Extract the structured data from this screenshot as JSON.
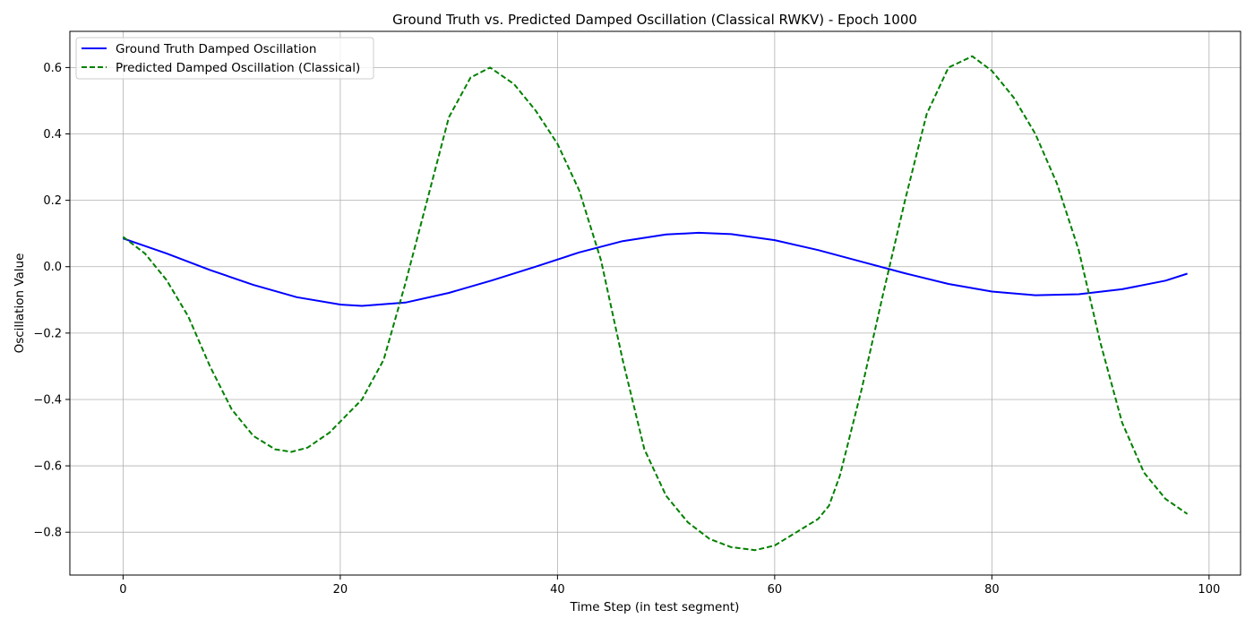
{
  "chart_data": {
    "type": "line",
    "title": "Ground Truth vs. Predicted Damped Oscillation (Classical RWKV) - Epoch 1000",
    "xlabel": "Time Step (in test segment)",
    "ylabel": "Oscillation Value",
    "xlim": [
      -4.9,
      102.9
    ],
    "ylim": [
      -0.929,
      0.709
    ],
    "xticks": [
      0,
      20,
      40,
      60,
      80,
      100
    ],
    "yticks": [
      -0.8,
      -0.6,
      -0.4,
      -0.2,
      0.0,
      0.2,
      0.4,
      0.6
    ],
    "xtick_labels": [
      "0",
      "20",
      "40",
      "60",
      "80",
      "100"
    ],
    "ytick_labels": [
      "−0.8",
      "−0.6",
      "−0.4",
      "−0.2",
      "0.0",
      "0.2",
      "0.4",
      "0.6"
    ],
    "grid": true,
    "legend_position": "top-left",
    "series": [
      {
        "name": "Ground Truth Damped Oscillation",
        "color": "#0000ff",
        "style": "solid",
        "x": [
          0,
          4,
          8,
          12,
          16,
          20,
          22,
          26,
          30,
          34,
          38,
          42,
          46,
          50,
          53,
          56,
          60,
          64,
          68,
          72,
          76,
          80,
          84,
          88,
          92,
          96,
          98
        ],
        "y": [
          0.085,
          0.04,
          -0.01,
          -0.055,
          -0.092,
          -0.114,
          -0.118,
          -0.108,
          -0.079,
          -0.041,
          0.0,
          0.043,
          0.077,
          0.097,
          0.102,
          0.098,
          0.08,
          0.05,
          0.015,
          -0.02,
          -0.052,
          -0.075,
          -0.086,
          -0.083,
          -0.068,
          -0.042,
          -0.021
        ]
      },
      {
        "name": "Predicted Damped Oscillation (Classical)",
        "color": "#008000",
        "style": "dashed",
        "x": [
          0,
          2,
          4,
          6,
          8,
          10,
          12,
          14,
          15.5,
          17,
          19,
          22,
          24,
          26,
          28,
          30,
          32,
          33.8,
          36,
          38,
          40,
          42,
          44,
          46,
          48,
          50,
          52,
          54,
          56,
          58.2,
          60,
          62,
          64,
          65,
          66,
          68,
          70,
          72,
          74,
          76,
          78.2,
          80,
          82,
          84,
          86,
          88,
          90,
          92,
          94,
          96,
          98
        ],
        "y": [
          0.09,
          0.04,
          -0.04,
          -0.15,
          -0.3,
          -0.43,
          -0.51,
          -0.55,
          -0.558,
          -0.545,
          -0.5,
          -0.4,
          -0.28,
          -0.05,
          0.2,
          0.45,
          0.57,
          0.6,
          0.55,
          0.47,
          0.37,
          0.23,
          0.02,
          -0.28,
          -0.55,
          -0.69,
          -0.77,
          -0.82,
          -0.845,
          -0.854,
          -0.84,
          -0.8,
          -0.76,
          -0.72,
          -0.63,
          -0.37,
          -0.08,
          0.2,
          0.46,
          0.6,
          0.634,
          0.59,
          0.51,
          0.4,
          0.25,
          0.05,
          -0.23,
          -0.47,
          -0.62,
          -0.7,
          -0.745
        ]
      }
    ]
  }
}
